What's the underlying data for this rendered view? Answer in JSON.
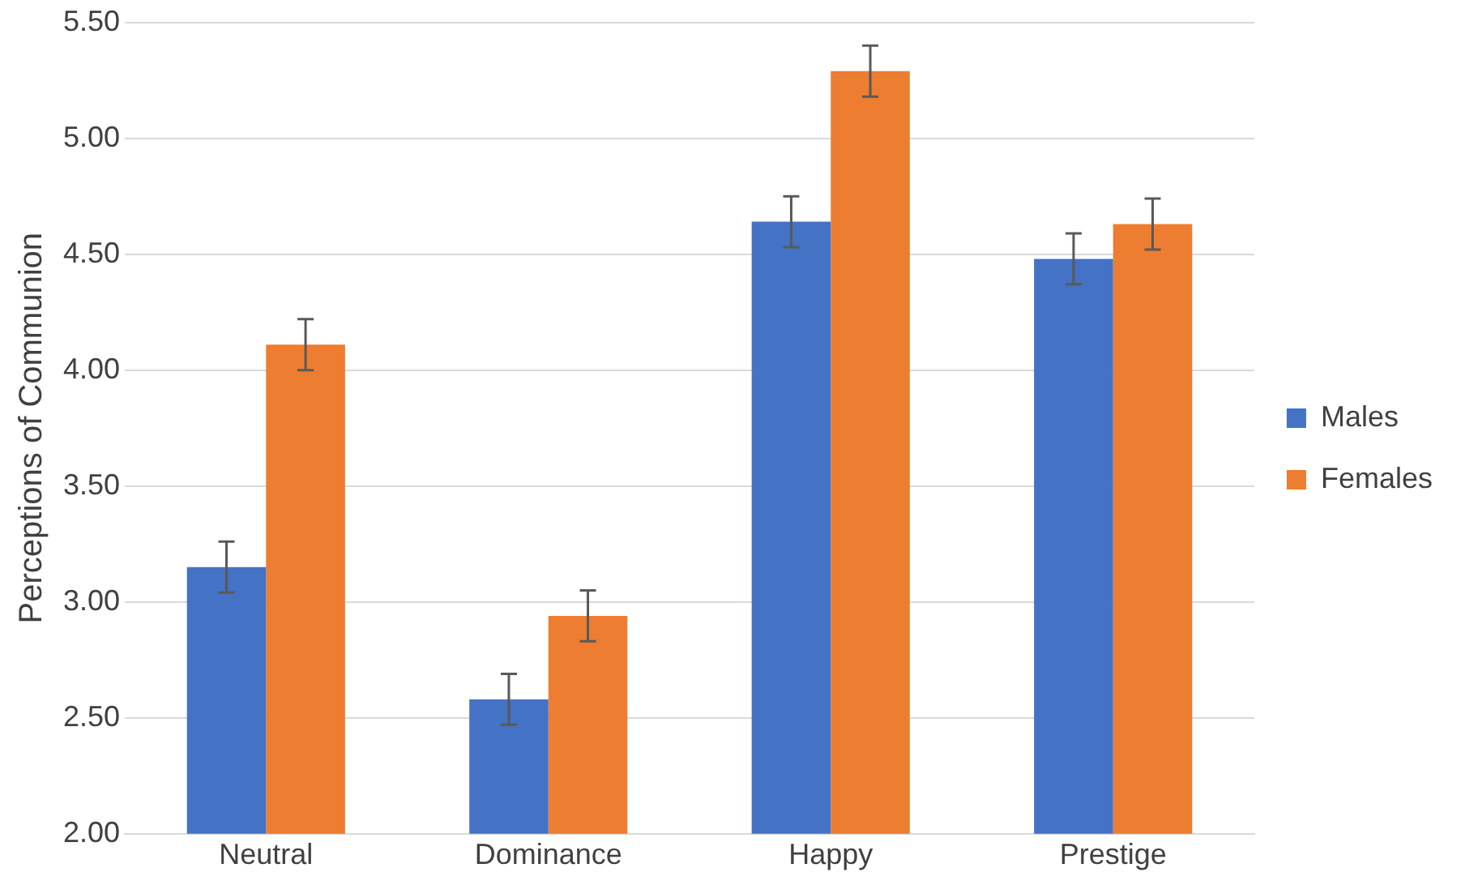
{
  "chart_data": {
    "type": "bar",
    "ylabel": "Perceptions of Communion",
    "categories": [
      "Neutral",
      "Dominance",
      "Happy",
      "Prestige"
    ],
    "series": [
      {
        "name": "Males",
        "color": "#4472c4",
        "values": [
          3.15,
          2.58,
          4.64,
          4.48
        ],
        "errors": [
          0.11,
          0.11,
          0.11,
          0.11
        ]
      },
      {
        "name": "Females",
        "color": "#ed7d31",
        "values": [
          4.11,
          2.94,
          5.29,
          4.63
        ],
        "errors": [
          0.11,
          0.11,
          0.11,
          0.11
        ]
      }
    ],
    "ylim": [
      2,
      5.5
    ],
    "yticks": [
      {
        "value": 2,
        "label": "2.00"
      },
      {
        "value": 2.5,
        "label": "2.50"
      },
      {
        "value": 3,
        "label": "3.00"
      },
      {
        "value": 3.5,
        "label": "3.50"
      },
      {
        "value": 4,
        "label": "4.00"
      },
      {
        "value": 4.5,
        "label": "4.50"
      },
      {
        "value": 5,
        "label": "5.00"
      },
      {
        "value": 5.5,
        "label": "5.50"
      }
    ],
    "grid": "y",
    "legend": "right"
  }
}
